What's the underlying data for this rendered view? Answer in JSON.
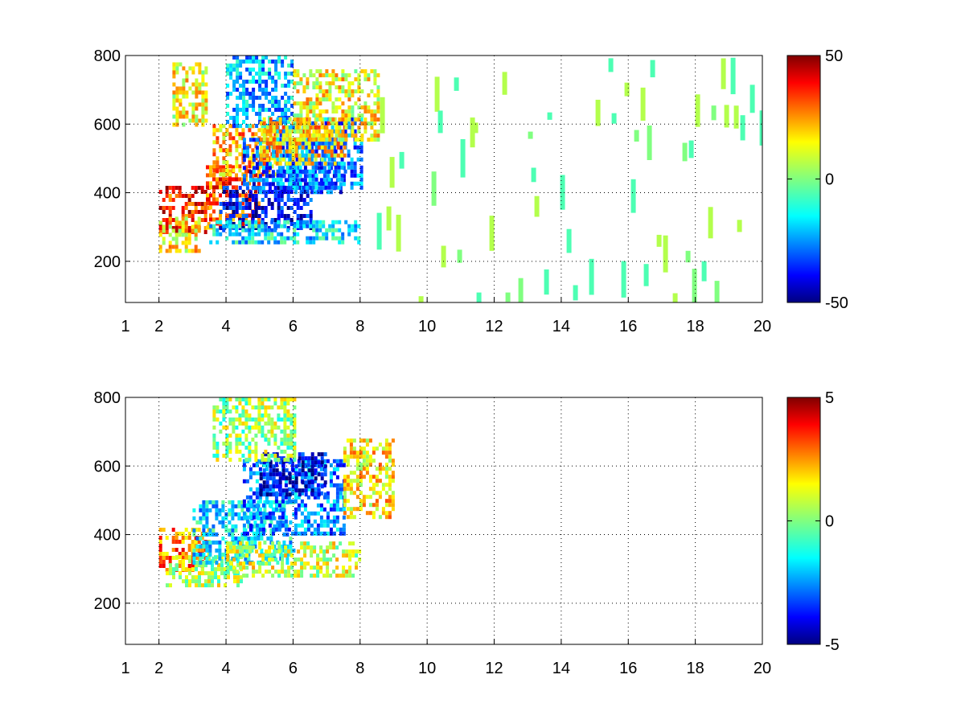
{
  "chart_data": [
    {
      "type": "heatmap",
      "title": "",
      "xlabel": "",
      "ylabel": "",
      "xlim": [
        1,
        20
      ],
      "ylim": [
        80,
        800
      ],
      "x_ticks": [
        1,
        2,
        4,
        6,
        8,
        10,
        12,
        14,
        16,
        18,
        20
      ],
      "x_tick_labels": [
        "1",
        "2",
        "4",
        "6",
        "8",
        "10",
        "12",
        "14",
        "16",
        "18",
        "20"
      ],
      "y_ticks": [
        200,
        400,
        600,
        800
      ],
      "y_tick_labels": [
        "200",
        "400",
        "600",
        "800"
      ],
      "grid": true,
      "colormap": "jet",
      "colorbar": {
        "range": [
          -50,
          50
        ],
        "ticks": [
          -50,
          0,
          50
        ],
        "tick_labels": [
          "-50",
          "0",
          "50"
        ]
      },
      "regions": [
        {
          "x": [
            2.0,
            3.5
          ],
          "y": [
            280,
            420
          ],
          "value": 35
        },
        {
          "x": [
            2.0,
            3.2
          ],
          "y": [
            230,
            330
          ],
          "value": 15
        },
        {
          "x": [
            2.4,
            3.4
          ],
          "y": [
            600,
            780
          ],
          "value": 12
        },
        {
          "x": [
            3.4,
            5.0
          ],
          "y": [
            300,
            480
          ],
          "value": 30
        },
        {
          "x": [
            3.6,
            5.5
          ],
          "y": [
            450,
            600
          ],
          "value": 20
        },
        {
          "x": [
            3.8,
            6.5
          ],
          "y": [
            300,
            420
          ],
          "value": -38
        },
        {
          "x": [
            4.5,
            7.5
          ],
          "y": [
            400,
            560
          ],
          "value": -30
        },
        {
          "x": [
            4.0,
            6.0
          ],
          "y": [
            600,
            800
          ],
          "value": -20
        },
        {
          "x": [
            5.5,
            8.0
          ],
          "y": [
            420,
            620
          ],
          "value": -25
        },
        {
          "x": [
            5.0,
            7.5
          ],
          "y": [
            480,
            620
          ],
          "value": 18
        },
        {
          "x": [
            6.0,
            8.5
          ],
          "y": [
            560,
            760
          ],
          "value": 12
        },
        {
          "x": [
            3.5,
            8.0
          ],
          "y": [
            260,
            320
          ],
          "value": -15
        }
      ],
      "sparse_region": {
        "x": [
          8.5,
          20
        ],
        "y": [
          80,
          800
        ],
        "values": [
          -5,
          0,
          5
        ]
      }
    },
    {
      "type": "heatmap",
      "title": "",
      "xlabel": "",
      "ylabel": "",
      "xlim": [
        1,
        20
      ],
      "ylim": [
        80,
        800
      ],
      "x_ticks": [
        1,
        2,
        4,
        6,
        8,
        10,
        12,
        14,
        16,
        18,
        20
      ],
      "x_tick_labels": [
        "1",
        "2",
        "4",
        "6",
        "8",
        "10",
        "12",
        "14",
        "16",
        "18",
        "20"
      ],
      "y_ticks": [
        200,
        400,
        600,
        800
      ],
      "y_tick_labels": [
        "200",
        "400",
        "600",
        "800"
      ],
      "grid": true,
      "colormap": "jet",
      "colorbar": {
        "range": [
          -5,
          5
        ],
        "ticks": [
          -5,
          0,
          5
        ],
        "tick_labels": [
          "-5",
          "0",
          "5"
        ]
      },
      "regions": [
        {
          "x": [
            2.0,
            3.5
          ],
          "y": [
            300,
            420
          ],
          "value": 2.5
        },
        {
          "x": [
            2.2,
            4.5
          ],
          "y": [
            250,
            340
          ],
          "value": 0.5
        },
        {
          "x": [
            3.0,
            6.0
          ],
          "y": [
            320,
            500
          ],
          "value": -1.5
        },
        {
          "x": [
            4.5,
            7.5
          ],
          "y": [
            400,
            620
          ],
          "value": -2.5
        },
        {
          "x": [
            5.0,
            7.0
          ],
          "y": [
            520,
            640
          ],
          "value": -4.0
        },
        {
          "x": [
            4.0,
            8.0
          ],
          "y": [
            280,
            380
          ],
          "value": 0.8
        },
        {
          "x": [
            3.6,
            6.0
          ],
          "y": [
            620,
            800
          ],
          "value": 0.3
        },
        {
          "x": [
            7.5,
            9.0
          ],
          "y": [
            450,
            680
          ],
          "value": 1.5
        }
      ]
    }
  ]
}
